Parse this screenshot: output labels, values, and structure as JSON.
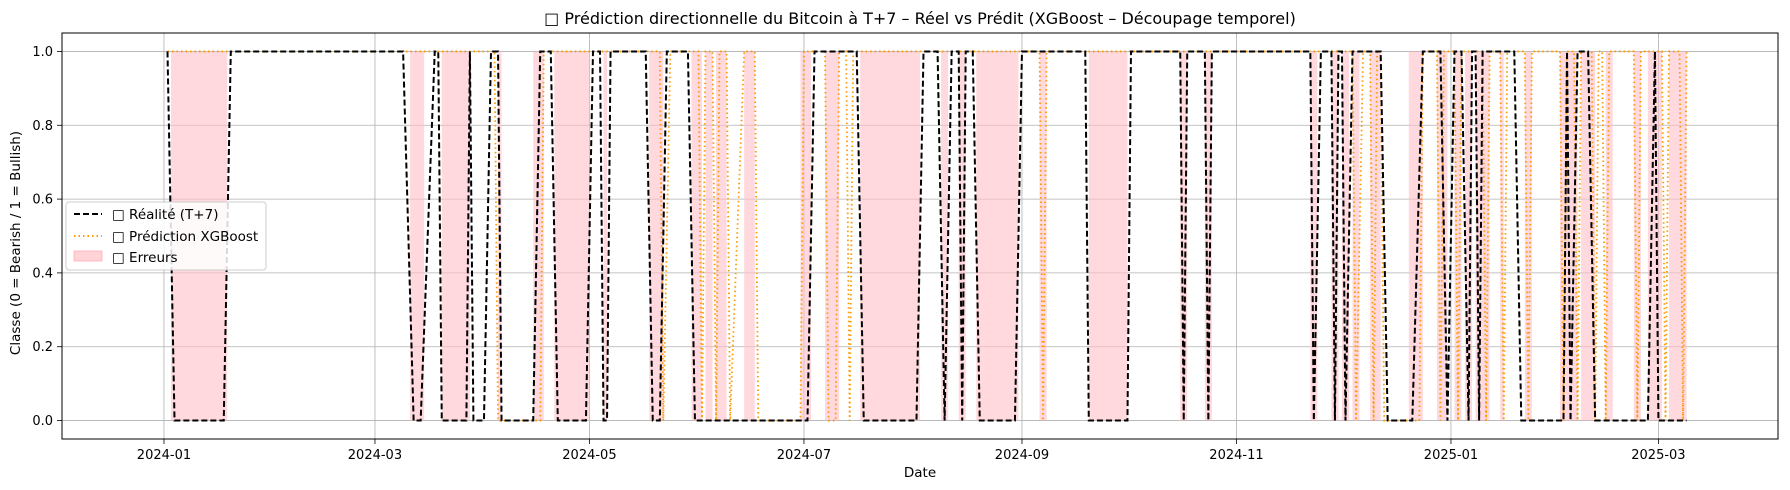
{
  "chart_data": {
    "type": "line",
    "title": "□ Prédiction directionnelle du Bitcoin à T+7 – Réel vs Prédit (XGBoost – Découpage temporel)",
    "xlabel": "Date",
    "ylabel": "Classe (0 = Bearish / 1 = Bullish)",
    "xlim": [
      "2023-12-03",
      "2025-04-04"
    ],
    "ylim": [
      -0.05,
      1.05
    ],
    "x_ticks": [
      "2024-01",
      "2024-03",
      "2024-05",
      "2024-07",
      "2024-09",
      "2024-11",
      "2025-01",
      "2025-03"
    ],
    "y_ticks": [
      "0.0",
      "0.2",
      "0.4",
      "0.6",
      "0.8",
      "1.0"
    ],
    "grid": true,
    "legend_position": "center-left",
    "colors": {
      "actual": "#000000",
      "predicted": "#ff9900",
      "errors": "#ffc0c6"
    },
    "series": [
      {
        "name": "□ Réalité (T+7)",
        "style": "dashed",
        "points": [
          [
            "2024-01-02",
            1
          ],
          [
            "2024-01-04",
            0
          ],
          [
            "2024-01-18",
            0
          ],
          [
            "2024-01-20",
            1
          ],
          [
            "2024-03-09",
            1
          ],
          [
            "2024-03-12",
            0
          ],
          [
            "2024-03-14",
            0
          ],
          [
            "2024-03-18",
            1
          ],
          [
            "2024-03-19",
            1
          ],
          [
            "2024-03-20",
            0
          ],
          [
            "2024-03-27",
            0
          ],
          [
            "2024-03-28",
            1
          ],
          [
            "2024-03-29",
            0
          ],
          [
            "2024-04-01",
            0
          ],
          [
            "2024-04-03",
            1
          ],
          [
            "2024-04-05",
            1
          ],
          [
            "2024-04-06",
            0
          ],
          [
            "2024-04-15",
            0
          ],
          [
            "2024-04-17",
            1
          ],
          [
            "2024-04-20",
            1
          ],
          [
            "2024-04-22",
            0
          ],
          [
            "2024-04-30",
            0
          ],
          [
            "2024-05-02",
            1
          ],
          [
            "2024-05-04",
            1
          ],
          [
            "2024-05-05",
            0
          ],
          [
            "2024-05-06",
            0
          ],
          [
            "2024-05-07",
            1
          ],
          [
            "2024-05-17",
            1
          ],
          [
            "2024-05-19",
            0
          ],
          [
            "2024-05-21",
            0
          ],
          [
            "2024-05-23",
            1
          ],
          [
            "2024-05-29",
            1
          ],
          [
            "2024-05-31",
            0
          ],
          [
            "2024-07-02",
            0
          ],
          [
            "2024-07-04",
            1
          ],
          [
            "2024-07-16",
            1
          ],
          [
            "2024-07-18",
            0
          ],
          [
            "2024-08-02",
            0
          ],
          [
            "2024-08-04",
            1
          ],
          [
            "2024-08-08",
            1
          ],
          [
            "2024-08-10",
            0
          ],
          [
            "2024-08-12",
            1
          ],
          [
            "2024-08-14",
            1
          ],
          [
            "2024-08-15",
            0
          ],
          [
            "2024-08-16",
            1
          ],
          [
            "2024-08-18",
            1
          ],
          [
            "2024-08-20",
            0
          ],
          [
            "2024-08-30",
            0
          ],
          [
            "2024-09-01",
            1
          ],
          [
            "2024-09-19",
            1
          ],
          [
            "2024-09-20",
            0
          ],
          [
            "2024-10-01",
            0
          ],
          [
            "2024-10-02",
            1
          ],
          [
            "2024-10-16",
            1
          ],
          [
            "2024-10-17",
            0
          ],
          [
            "2024-10-18",
            1
          ],
          [
            "2024-10-23",
            1
          ],
          [
            "2024-10-24",
            0
          ],
          [
            "2024-10-25",
            1
          ],
          [
            "2024-11-22",
            1
          ],
          [
            "2024-11-23",
            0
          ],
          [
            "2024-11-25",
            1
          ],
          [
            "2024-11-28",
            1
          ],
          [
            "2024-11-29",
            0
          ],
          [
            "2024-11-30",
            1
          ],
          [
            "2024-12-01",
            1
          ],
          [
            "2024-12-02",
            0
          ],
          [
            "2024-12-04",
            1
          ],
          [
            "2024-12-12",
            1
          ],
          [
            "2024-12-14",
            0
          ],
          [
            "2024-12-21",
            0
          ],
          [
            "2024-12-24",
            1
          ],
          [
            "2024-12-29",
            1
          ],
          [
            "2024-12-31",
            0
          ],
          [
            "2025-01-02",
            1
          ],
          [
            "2025-01-04",
            1
          ],
          [
            "2025-01-06",
            0
          ],
          [
            "2025-01-07",
            1
          ],
          [
            "2025-01-08",
            1
          ],
          [
            "2025-01-09",
            0
          ],
          [
            "2025-01-10",
            1
          ],
          [
            "2025-01-19",
            1
          ],
          [
            "2025-01-21",
            0
          ],
          [
            "2025-02-02",
            0
          ],
          [
            "2025-02-03",
            1
          ],
          [
            "2025-02-04",
            0
          ],
          [
            "2025-02-06",
            1
          ],
          [
            "2025-02-09",
            1
          ],
          [
            "2025-02-11",
            0
          ],
          [
            "2025-02-26",
            0
          ],
          [
            "2025-02-28",
            1
          ],
          [
            "2025-03-01",
            0
          ],
          [
            "2025-03-09",
            0
          ]
        ]
      },
      {
        "name": "□ Prédiction XGBoost",
        "style": "dotted",
        "points": [
          [
            "2024-01-02",
            1
          ],
          [
            "2024-04-04",
            1
          ],
          [
            "2024-04-05",
            0
          ],
          [
            "2024-04-17",
            0
          ],
          [
            "2024-04-18",
            1
          ],
          [
            "2024-05-21",
            1
          ],
          [
            "2024-05-22",
            0
          ],
          [
            "2024-05-24",
            1
          ],
          [
            "2024-06-01",
            1
          ],
          [
            "2024-06-02",
            0
          ],
          [
            "2024-06-03",
            1
          ],
          [
            "2024-06-05",
            1
          ],
          [
            "2024-06-06",
            0
          ],
          [
            "2024-06-07",
            1
          ],
          [
            "2024-06-09",
            1
          ],
          [
            "2024-06-10",
            0
          ],
          [
            "2024-06-14",
            1
          ],
          [
            "2024-06-17",
            1
          ],
          [
            "2024-06-18",
            0
          ],
          [
            "2024-06-30",
            0
          ],
          [
            "2024-07-01",
            1
          ],
          [
            "2024-07-07",
            1
          ],
          [
            "2024-07-08",
            0
          ],
          [
            "2024-07-10",
            0
          ],
          [
            "2024-07-11",
            1
          ],
          [
            "2024-07-13",
            1
          ],
          [
            "2024-07-14",
            0
          ],
          [
            "2024-07-15",
            1
          ],
          [
            "2024-09-06",
            1
          ],
          [
            "2024-09-07",
            0
          ],
          [
            "2024-09-08",
            1
          ],
          [
            "2024-12-04",
            1
          ],
          [
            "2024-12-05",
            0
          ],
          [
            "2024-12-07",
            1
          ],
          [
            "2024-12-09",
            1
          ],
          [
            "2024-12-10",
            0
          ],
          [
            "2024-12-11",
            1
          ],
          [
            "2024-12-12",
            1
          ],
          [
            "2024-12-13",
            0
          ],
          [
            "2024-12-23",
            0
          ],
          [
            "2024-12-24",
            1
          ],
          [
            "2024-12-28",
            1
          ],
          [
            "2024-12-29",
            0
          ],
          [
            "2024-12-30",
            1
          ],
          [
            "2025-01-02",
            1
          ],
          [
            "2025-01-03",
            0
          ],
          [
            "2025-01-04",
            1
          ],
          [
            "2025-01-10",
            1
          ],
          [
            "2025-01-11",
            0
          ],
          [
            "2025-01-12",
            1
          ],
          [
            "2025-01-15",
            1
          ],
          [
            "2025-01-16",
            0
          ],
          [
            "2025-01-17",
            1
          ],
          [
            "2025-01-22",
            1
          ],
          [
            "2025-01-23",
            0
          ],
          [
            "2025-01-24",
            1
          ],
          [
            "2025-02-01",
            1
          ],
          [
            "2025-02-02",
            0
          ],
          [
            "2025-02-03",
            1
          ],
          [
            "2025-02-05",
            1
          ],
          [
            "2025-02-06",
            0
          ],
          [
            "2025-02-07",
            1
          ],
          [
            "2025-02-10",
            1
          ],
          [
            "2025-02-11",
            0
          ],
          [
            "2025-02-12",
            1
          ],
          [
            "2025-02-13",
            1
          ],
          [
            "2025-02-14",
            0
          ],
          [
            "2025-02-15",
            1
          ],
          [
            "2025-02-22",
            1
          ],
          [
            "2025-02-23",
            0
          ],
          [
            "2025-02-24",
            1
          ],
          [
            "2025-03-02",
            1
          ],
          [
            "2025-03-03",
            0
          ],
          [
            "2025-03-04",
            1
          ],
          [
            "2025-03-07",
            1
          ],
          [
            "2025-03-08",
            0
          ],
          [
            "2025-03-09",
            1
          ]
        ]
      }
    ],
    "error_label": "□ Erreurs",
    "error_spans": [
      [
        "2024-01-03",
        "2024-01-19"
      ],
      [
        "2024-03-11",
        "2024-03-15"
      ],
      [
        "2024-03-20",
        "2024-03-28"
      ],
      [
        "2024-04-05",
        "2024-04-06"
      ],
      [
        "2024-04-15",
        "2024-04-18"
      ],
      [
        "2024-04-21",
        "2024-05-01"
      ],
      [
        "2024-05-05",
        "2024-05-06"
      ],
      [
        "2024-05-18",
        "2024-05-22"
      ],
      [
        "2024-05-30",
        "2024-06-02"
      ],
      [
        "2024-06-03",
        "2024-06-05"
      ],
      [
        "2024-06-06",
        "2024-06-09"
      ],
      [
        "2024-06-14",
        "2024-06-17"
      ],
      [
        "2024-06-30",
        "2024-07-03"
      ],
      [
        "2024-07-07",
        "2024-07-11"
      ],
      [
        "2024-07-17",
        "2024-08-03"
      ],
      [
        "2024-08-09",
        "2024-08-11"
      ],
      [
        "2024-08-14",
        "2024-08-16"
      ],
      [
        "2024-08-19",
        "2024-08-31"
      ],
      [
        "2024-09-06",
        "2024-09-08"
      ],
      [
        "2024-09-20",
        "2024-10-01"
      ],
      [
        "2024-10-16",
        "2024-10-18"
      ],
      [
        "2024-10-23",
        "2024-10-25"
      ],
      [
        "2024-11-22",
        "2024-11-24"
      ],
      [
        "2024-11-28",
        "2024-11-30"
      ],
      [
        "2024-12-01",
        "2024-12-03"
      ],
      [
        "2024-12-04",
        "2024-12-06"
      ],
      [
        "2024-12-09",
        "2024-12-12"
      ],
      [
        "2024-12-20",
        "2024-12-24"
      ],
      [
        "2024-12-28",
        "2024-12-31"
      ],
      [
        "2025-01-02",
        "2025-01-04"
      ],
      [
        "2025-01-05",
        "2025-01-07"
      ],
      [
        "2025-01-08",
        "2025-01-12"
      ],
      [
        "2025-01-15",
        "2025-01-16"
      ],
      [
        "2025-01-22",
        "2025-01-24"
      ],
      [
        "2025-02-01",
        "2025-02-06"
      ],
      [
        "2025-02-07",
        "2025-02-11"
      ],
      [
        "2025-02-14",
        "2025-02-16"
      ],
      [
        "2025-02-22",
        "2025-02-24"
      ],
      [
        "2025-02-26",
        "2025-03-02"
      ],
      [
        "2025-03-04",
        "2025-03-09"
      ]
    ]
  }
}
